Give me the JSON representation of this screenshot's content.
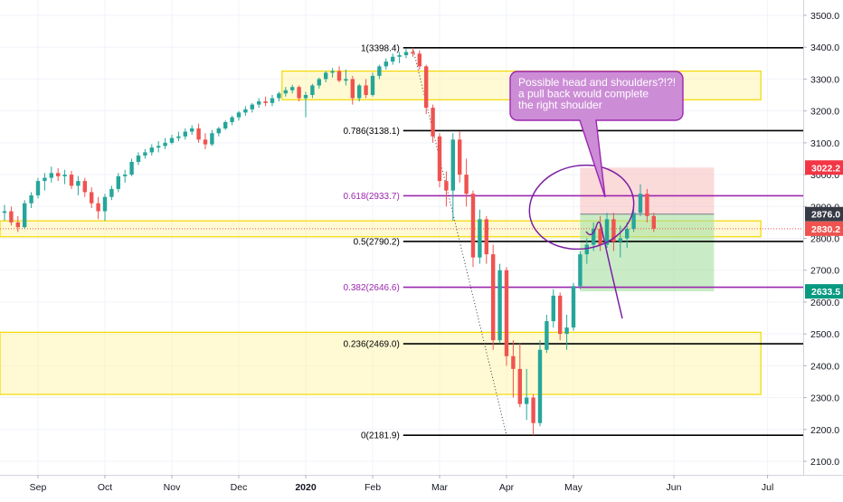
{
  "chart_data": {
    "type": "candlestick",
    "title": "",
    "xlabel": "",
    "ylabel": "",
    "ylim": [
      2080,
      3550
    ],
    "grid": true,
    "x_ticks": [
      {
        "label": "Sep",
        "idx": 5,
        "bold": false
      },
      {
        "label": "Oct",
        "idx": 15,
        "bold": false
      },
      {
        "label": "Nov",
        "idx": 25,
        "bold": false
      },
      {
        "label": "Dec",
        "idx": 35,
        "bold": false
      },
      {
        "label": "2020",
        "idx": 45,
        "bold": true
      },
      {
        "label": "Feb",
        "idx": 55,
        "bold": false
      },
      {
        "label": "Mar",
        "idx": 65,
        "bold": false
      },
      {
        "label": "Apr",
        "idx": 75,
        "bold": false
      },
      {
        "label": "May",
        "idx": 85,
        "bold": false
      },
      {
        "label": "Jun",
        "idx": 100,
        "bold": false
      },
      {
        "label": "Jul",
        "idx": 114,
        "bold": false
      }
    ],
    "y_ticks": [
      2100,
      2200,
      2300,
      2400,
      2500,
      2600,
      2700,
      2800,
      2900,
      3000,
      3100,
      3200,
      3300,
      3400,
      3500
    ],
    "candles": [
      {
        "o": 2880,
        "h": 2905,
        "l": 2855,
        "c": 2885
      },
      {
        "o": 2885,
        "h": 2900,
        "l": 2840,
        "c": 2850
      },
      {
        "o": 2850,
        "h": 2870,
        "l": 2820,
        "c": 2835
      },
      {
        "o": 2835,
        "h": 2920,
        "l": 2830,
        "c": 2910
      },
      {
        "o": 2910,
        "h": 2945,
        "l": 2895,
        "c": 2935
      },
      {
        "o": 2935,
        "h": 2990,
        "l": 2925,
        "c": 2980
      },
      {
        "o": 2980,
        "h": 3005,
        "l": 2950,
        "c": 2990
      },
      {
        "o": 2990,
        "h": 3025,
        "l": 2975,
        "c": 3005
      },
      {
        "o": 3005,
        "h": 3020,
        "l": 2980,
        "c": 2995
      },
      {
        "o": 2995,
        "h": 3015,
        "l": 2970,
        "c": 3000
      },
      {
        "o": 3000,
        "h": 3012,
        "l": 2955,
        "c": 2965
      },
      {
        "o": 2965,
        "h": 2995,
        "l": 2935,
        "c": 2980
      },
      {
        "o": 2980,
        "h": 2990,
        "l": 2930,
        "c": 2945
      },
      {
        "o": 2945,
        "h": 2960,
        "l": 2895,
        "c": 2910
      },
      {
        "o": 2910,
        "h": 2930,
        "l": 2860,
        "c": 2885
      },
      {
        "o": 2885,
        "h": 2940,
        "l": 2855,
        "c": 2930
      },
      {
        "o": 2930,
        "h": 2965,
        "l": 2920,
        "c": 2955
      },
      {
        "o": 2955,
        "h": 3005,
        "l": 2945,
        "c": 2995
      },
      {
        "o": 2995,
        "h": 3015,
        "l": 2975,
        "c": 3000
      },
      {
        "o": 3000,
        "h": 3050,
        "l": 2995,
        "c": 3040
      },
      {
        "o": 3040,
        "h": 3070,
        "l": 3030,
        "c": 3060
      },
      {
        "o": 3060,
        "h": 3080,
        "l": 3050,
        "c": 3070
      },
      {
        "o": 3070,
        "h": 3095,
        "l": 3060,
        "c": 3085
      },
      {
        "o": 3085,
        "h": 3105,
        "l": 3070,
        "c": 3090
      },
      {
        "o": 3090,
        "h": 3115,
        "l": 3080,
        "c": 3100
      },
      {
        "o": 3100,
        "h": 3125,
        "l": 3095,
        "c": 3115
      },
      {
        "o": 3115,
        "h": 3135,
        "l": 3105,
        "c": 3120
      },
      {
        "o": 3120,
        "h": 3145,
        "l": 3110,
        "c": 3135
      },
      {
        "o": 3135,
        "h": 3155,
        "l": 3125,
        "c": 3145
      },
      {
        "o": 3145,
        "h": 3160,
        "l": 3100,
        "c": 3110
      },
      {
        "o": 3110,
        "h": 3130,
        "l": 3080,
        "c": 3095
      },
      {
        "o": 3095,
        "h": 3140,
        "l": 3090,
        "c": 3130
      },
      {
        "o": 3130,
        "h": 3150,
        "l": 3120,
        "c": 3145
      },
      {
        "o": 3145,
        "h": 3170,
        "l": 3140,
        "c": 3165
      },
      {
        "o": 3165,
        "h": 3185,
        "l": 3155,
        "c": 3180
      },
      {
        "o": 3180,
        "h": 3200,
        "l": 3170,
        "c": 3195
      },
      {
        "o": 3195,
        "h": 3215,
        "l": 3185,
        "c": 3205
      },
      {
        "o": 3205,
        "h": 3225,
        "l": 3195,
        "c": 3220
      },
      {
        "o": 3220,
        "h": 3240,
        "l": 3210,
        "c": 3230
      },
      {
        "o": 3230,
        "h": 3245,
        "l": 3215,
        "c": 3225
      },
      {
        "o": 3225,
        "h": 3250,
        "l": 3215,
        "c": 3240
      },
      {
        "o": 3240,
        "h": 3260,
        "l": 3230,
        "c": 3255
      },
      {
        "o": 3255,
        "h": 3275,
        "l": 3245,
        "c": 3265
      },
      {
        "o": 3265,
        "h": 3282,
        "l": 3255,
        "c": 3275
      },
      {
        "o": 3275,
        "h": 3280,
        "l": 3230,
        "c": 3240
      },
      {
        "o": 3240,
        "h": 3260,
        "l": 3180,
        "c": 3250
      },
      {
        "o": 3250,
        "h": 3285,
        "l": 3240,
        "c": 3280
      },
      {
        "o": 3280,
        "h": 3305,
        "l": 3270,
        "c": 3300
      },
      {
        "o": 3300,
        "h": 3325,
        "l": 3290,
        "c": 3320
      },
      {
        "o": 3320,
        "h": 3335,
        "l": 3305,
        "c": 3325
      },
      {
        "o": 3325,
        "h": 3340,
        "l": 3290,
        "c": 3295
      },
      {
        "o": 3295,
        "h": 3330,
        "l": 3280,
        "c": 3300
      },
      {
        "o": 3300,
        "h": 3310,
        "l": 3220,
        "c": 3240
      },
      {
        "o": 3240,
        "h": 3285,
        "l": 3230,
        "c": 3280
      },
      {
        "o": 3280,
        "h": 3300,
        "l": 3240,
        "c": 3250
      },
      {
        "o": 3250,
        "h": 3320,
        "l": 3245,
        "c": 3310
      },
      {
        "o": 3310,
        "h": 3345,
        "l": 3300,
        "c": 3340
      },
      {
        "o": 3340,
        "h": 3365,
        "l": 3330,
        "c": 3355
      },
      {
        "o": 3355,
        "h": 3380,
        "l": 3345,
        "c": 3370
      },
      {
        "o": 3370,
        "h": 3385,
        "l": 3350,
        "c": 3375
      },
      {
        "o": 3375,
        "h": 3395,
        "l": 3365,
        "c": 3385
      },
      {
        "o": 3385,
        "h": 3398.4,
        "l": 3370,
        "c": 3380
      },
      {
        "o": 3380,
        "h": 3390,
        "l": 3330,
        "c": 3340
      },
      {
        "o": 3340,
        "h": 3345,
        "l": 3190,
        "c": 3210
      },
      {
        "o": 3210,
        "h": 3220,
        "l": 3100,
        "c": 3120
      },
      {
        "o": 3120,
        "h": 3130,
        "l": 2960,
        "c": 2980
      },
      {
        "o": 2980,
        "h": 3010,
        "l": 2900,
        "c": 2950
      },
      {
        "o": 2950,
        "h": 3130,
        "l": 2855,
        "c": 3110
      },
      {
        "o": 3110,
        "h": 3135,
        "l": 2975,
        "c": 3000
      },
      {
        "o": 3000,
        "h": 3050,
        "l": 2900,
        "c": 2940
      },
      {
        "o": 2940,
        "h": 2950,
        "l": 2710,
        "c": 2740
      },
      {
        "o": 2740,
        "h": 2890,
        "l": 2720,
        "c": 2860
      },
      {
        "o": 2860,
        "h": 2870,
        "l": 2720,
        "c": 2750
      },
      {
        "o": 2750,
        "h": 2780,
        "l": 2450,
        "c": 2480
      },
      {
        "o": 2480,
        "h": 2720,
        "l": 2470,
        "c": 2700
      },
      {
        "o": 2700,
        "h": 2710,
        "l": 2400,
        "c": 2430
      },
      {
        "o": 2430,
        "h": 2480,
        "l": 2300,
        "c": 2390
      },
      {
        "o": 2390,
        "h": 2470,
        "l": 2270,
        "c": 2280
      },
      {
        "o": 2280,
        "h": 2390,
        "l": 2230,
        "c": 2300
      },
      {
        "o": 2300,
        "h": 2310,
        "l": 2181.9,
        "c": 2220
      },
      {
        "o": 2220,
        "h": 2480,
        "l": 2210,
        "c": 2450
      },
      {
        "o": 2450,
        "h": 2560,
        "l": 2440,
        "c": 2540
      },
      {
        "o": 2540,
        "h": 2640,
        "l": 2520,
        "c": 2620
      },
      {
        "o": 2620,
        "h": 2630,
        "l": 2480,
        "c": 2500
      },
      {
        "o": 2500,
        "h": 2560,
        "l": 2450,
        "c": 2520
      },
      {
        "o": 2520,
        "h": 2660,
        "l": 2510,
        "c": 2650
      },
      {
        "o": 2650,
        "h": 2760,
        "l": 2640,
        "c": 2750
      },
      {
        "o": 2750,
        "h": 2800,
        "l": 2720,
        "c": 2780
      },
      {
        "o": 2780,
        "h": 2850,
        "l": 2760,
        "c": 2830
      },
      {
        "o": 2830,
        "h": 2870,
        "l": 2760,
        "c": 2780
      },
      {
        "o": 2780,
        "h": 2880,
        "l": 2770,
        "c": 2860
      },
      {
        "o": 2860,
        "h": 2880,
        "l": 2760,
        "c": 2790
      },
      {
        "o": 2790,
        "h": 2840,
        "l": 2740,
        "c": 2800
      },
      {
        "o": 2800,
        "h": 2850,
        "l": 2770,
        "c": 2830
      },
      {
        "o": 2830,
        "h": 2900,
        "l": 2820,
        "c": 2880
      },
      {
        "o": 2880,
        "h": 2970,
        "l": 2870,
        "c": 2940
      },
      {
        "o": 2940,
        "h": 2955,
        "l": 2850,
        "c": 2870
      },
      {
        "o": 2870,
        "h": 2880,
        "l": 2820,
        "c": 2830.2
      }
    ],
    "fib_levels": [
      {
        "label": "1(3398.4)",
        "value": 3398.4,
        "color": "#000000"
      },
      {
        "label": "0.786(3138.1)",
        "value": 3138.1,
        "color": "#000000"
      },
      {
        "label": "0.618(2933.7)",
        "value": 2933.7,
        "color": "#9c27b0"
      },
      {
        "label": "0.5(2790.2)",
        "value": 2790.2,
        "color": "#000000"
      },
      {
        "label": "0.382(2646.6)",
        "value": 2646.6,
        "color": "#9c27b0"
      },
      {
        "label": "0.236(2469.0)",
        "value": 2469.0,
        "color": "#000000"
      },
      {
        "label": "0(2181.9)",
        "value": 2181.9,
        "color": "#000000"
      }
    ],
    "zones": [
      {
        "top": 3325,
        "bottom": 3235,
        "from_idx": 42,
        "to_idx": 113
      },
      {
        "top": 2855,
        "bottom": 2805,
        "from_idx": 0,
        "to_idx": 113
      },
      {
        "top": 2505,
        "bottom": 2310,
        "from_idx": 0,
        "to_idx": 113
      }
    ],
    "position": {
      "entry": 2876.0,
      "stop": 3022.2,
      "target": 2633.5,
      "from_idx": 86,
      "to_idx": 106
    },
    "price_labels": [
      {
        "text": "3022.2",
        "value": 3022.2,
        "bg": "#f23645",
        "fg": "#ffffff"
      },
      {
        "text": "2876.0",
        "value": 2876.0,
        "bg": "#363a45",
        "fg": "#ffffff"
      },
      {
        "text": "2830.2",
        "value": 2830.2,
        "bg": "#ef5350",
        "fg": "#ffffff"
      },
      {
        "text": "2633.5",
        "value": 2633.5,
        "bg": "#089981",
        "fg": "#ffffff"
      }
    ],
    "annotation": {
      "lines": [
        "Possible head and shoulders?!?!",
        "a pull back would complete",
        "the right shoulder"
      ]
    }
  }
}
